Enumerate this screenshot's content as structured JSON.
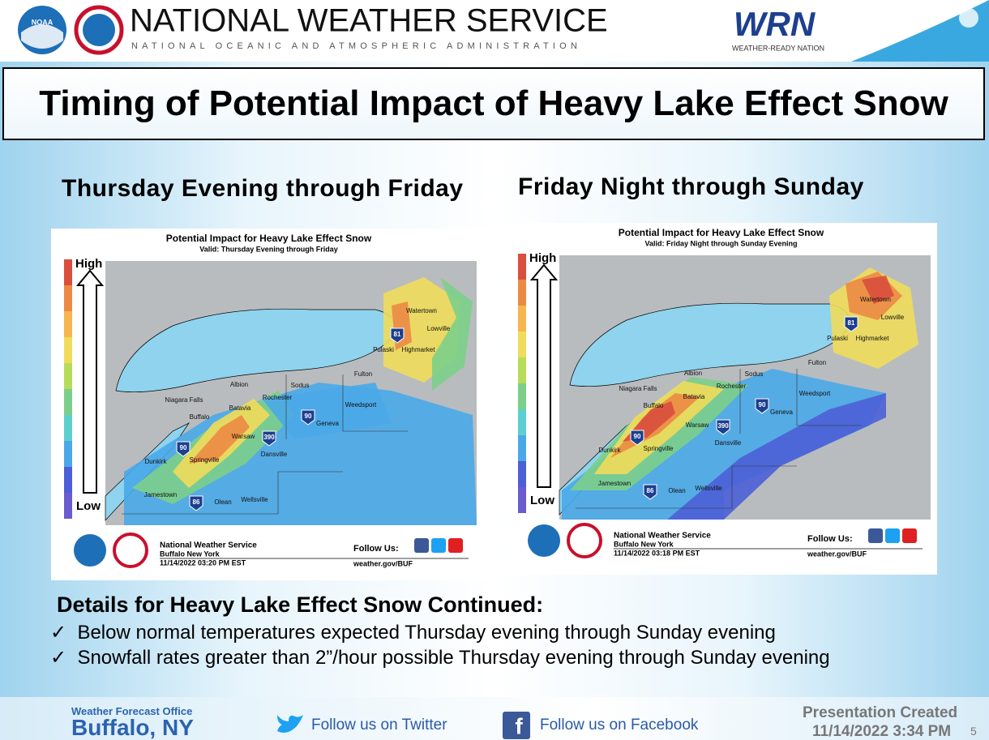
{
  "header": {
    "noaa": "NOAA",
    "agency": "NATIONAL WEATHER SERVICE",
    "subtitle": "NATIONAL OCEANIC AND ATMOSPHERIC ADMINISTRATION",
    "wrn": "WRN",
    "wrn_sub": "WEATHER-READY NATION"
  },
  "title": "Timing of Potential Impact of Heavy Lake Effect Snow",
  "panels": [
    {
      "heading": "Thursday Evening through Friday",
      "map_title": "Potential Impact for Heavy Lake Effect Snow",
      "map_valid": "Valid: Thursday Evening through Friday",
      "scale_high": "High",
      "scale_low": "Low",
      "cities": [
        "Watertown",
        "Lowville",
        "Pulaski",
        "Highmarket",
        "Fulton",
        "Sodus",
        "Albion",
        "Rochester",
        "Niagara Falls",
        "Batavia",
        "Buffalo",
        "Weedsport",
        "Geneva",
        "Warsaw",
        "Dansville",
        "Dunkirk",
        "Springville",
        "Jamestown",
        "Olean",
        "Wellsville"
      ],
      "highways": [
        "81",
        "90",
        "390",
        "86",
        "90"
      ],
      "footer": {
        "org": "National Weather Service",
        "office": "Buffalo New York",
        "timestamp": "11/14/2022 03:20 PM EST",
        "follow": "Follow Us:",
        "url": "weather.gov/BUF"
      }
    },
    {
      "heading": "Friday Night through Sunday",
      "map_title": "Potential Impact for Heavy Lake Effect Snow",
      "map_valid": "Valid: Friday Night through Sunday Evening",
      "scale_high": "High",
      "scale_low": "Low",
      "cities": [
        "Watertown",
        "Lowville",
        "Pulaski",
        "Highmarket",
        "Fulton",
        "Sodus",
        "Albion",
        "Rochester",
        "Niagara Falls",
        "Batavia",
        "Buffalo",
        "Weedsport",
        "Geneva",
        "Warsaw",
        "Dansville",
        "Dunkirk",
        "Springville",
        "Jamestown",
        "Olean",
        "Wellsville"
      ],
      "highways": [
        "81",
        "90",
        "390",
        "86",
        "90"
      ],
      "footer": {
        "org": "National Weather Service",
        "office": "Buffalo New York",
        "timestamp": "11/14/2022 03:18 PM EST",
        "follow": "Follow Us:",
        "url": "weather.gov/BUF"
      }
    }
  ],
  "details": {
    "heading": "Details for Heavy Lake Effect Snow Continued:",
    "items": [
      "Below normal temperatures expected Thursday evening through Sunday evening",
      "Snowfall rates greater than 2”/hour possible Thursday evening through Sunday evening"
    ]
  },
  "footer": {
    "wfo": "Weather Forecast Office",
    "city": "Buffalo, NY",
    "twitter": "Follow us on Twitter",
    "facebook": "Follow us on Facebook",
    "created": "Presentation Created",
    "created_date": "11/14/2022 3:34 PM",
    "page": "5"
  }
}
